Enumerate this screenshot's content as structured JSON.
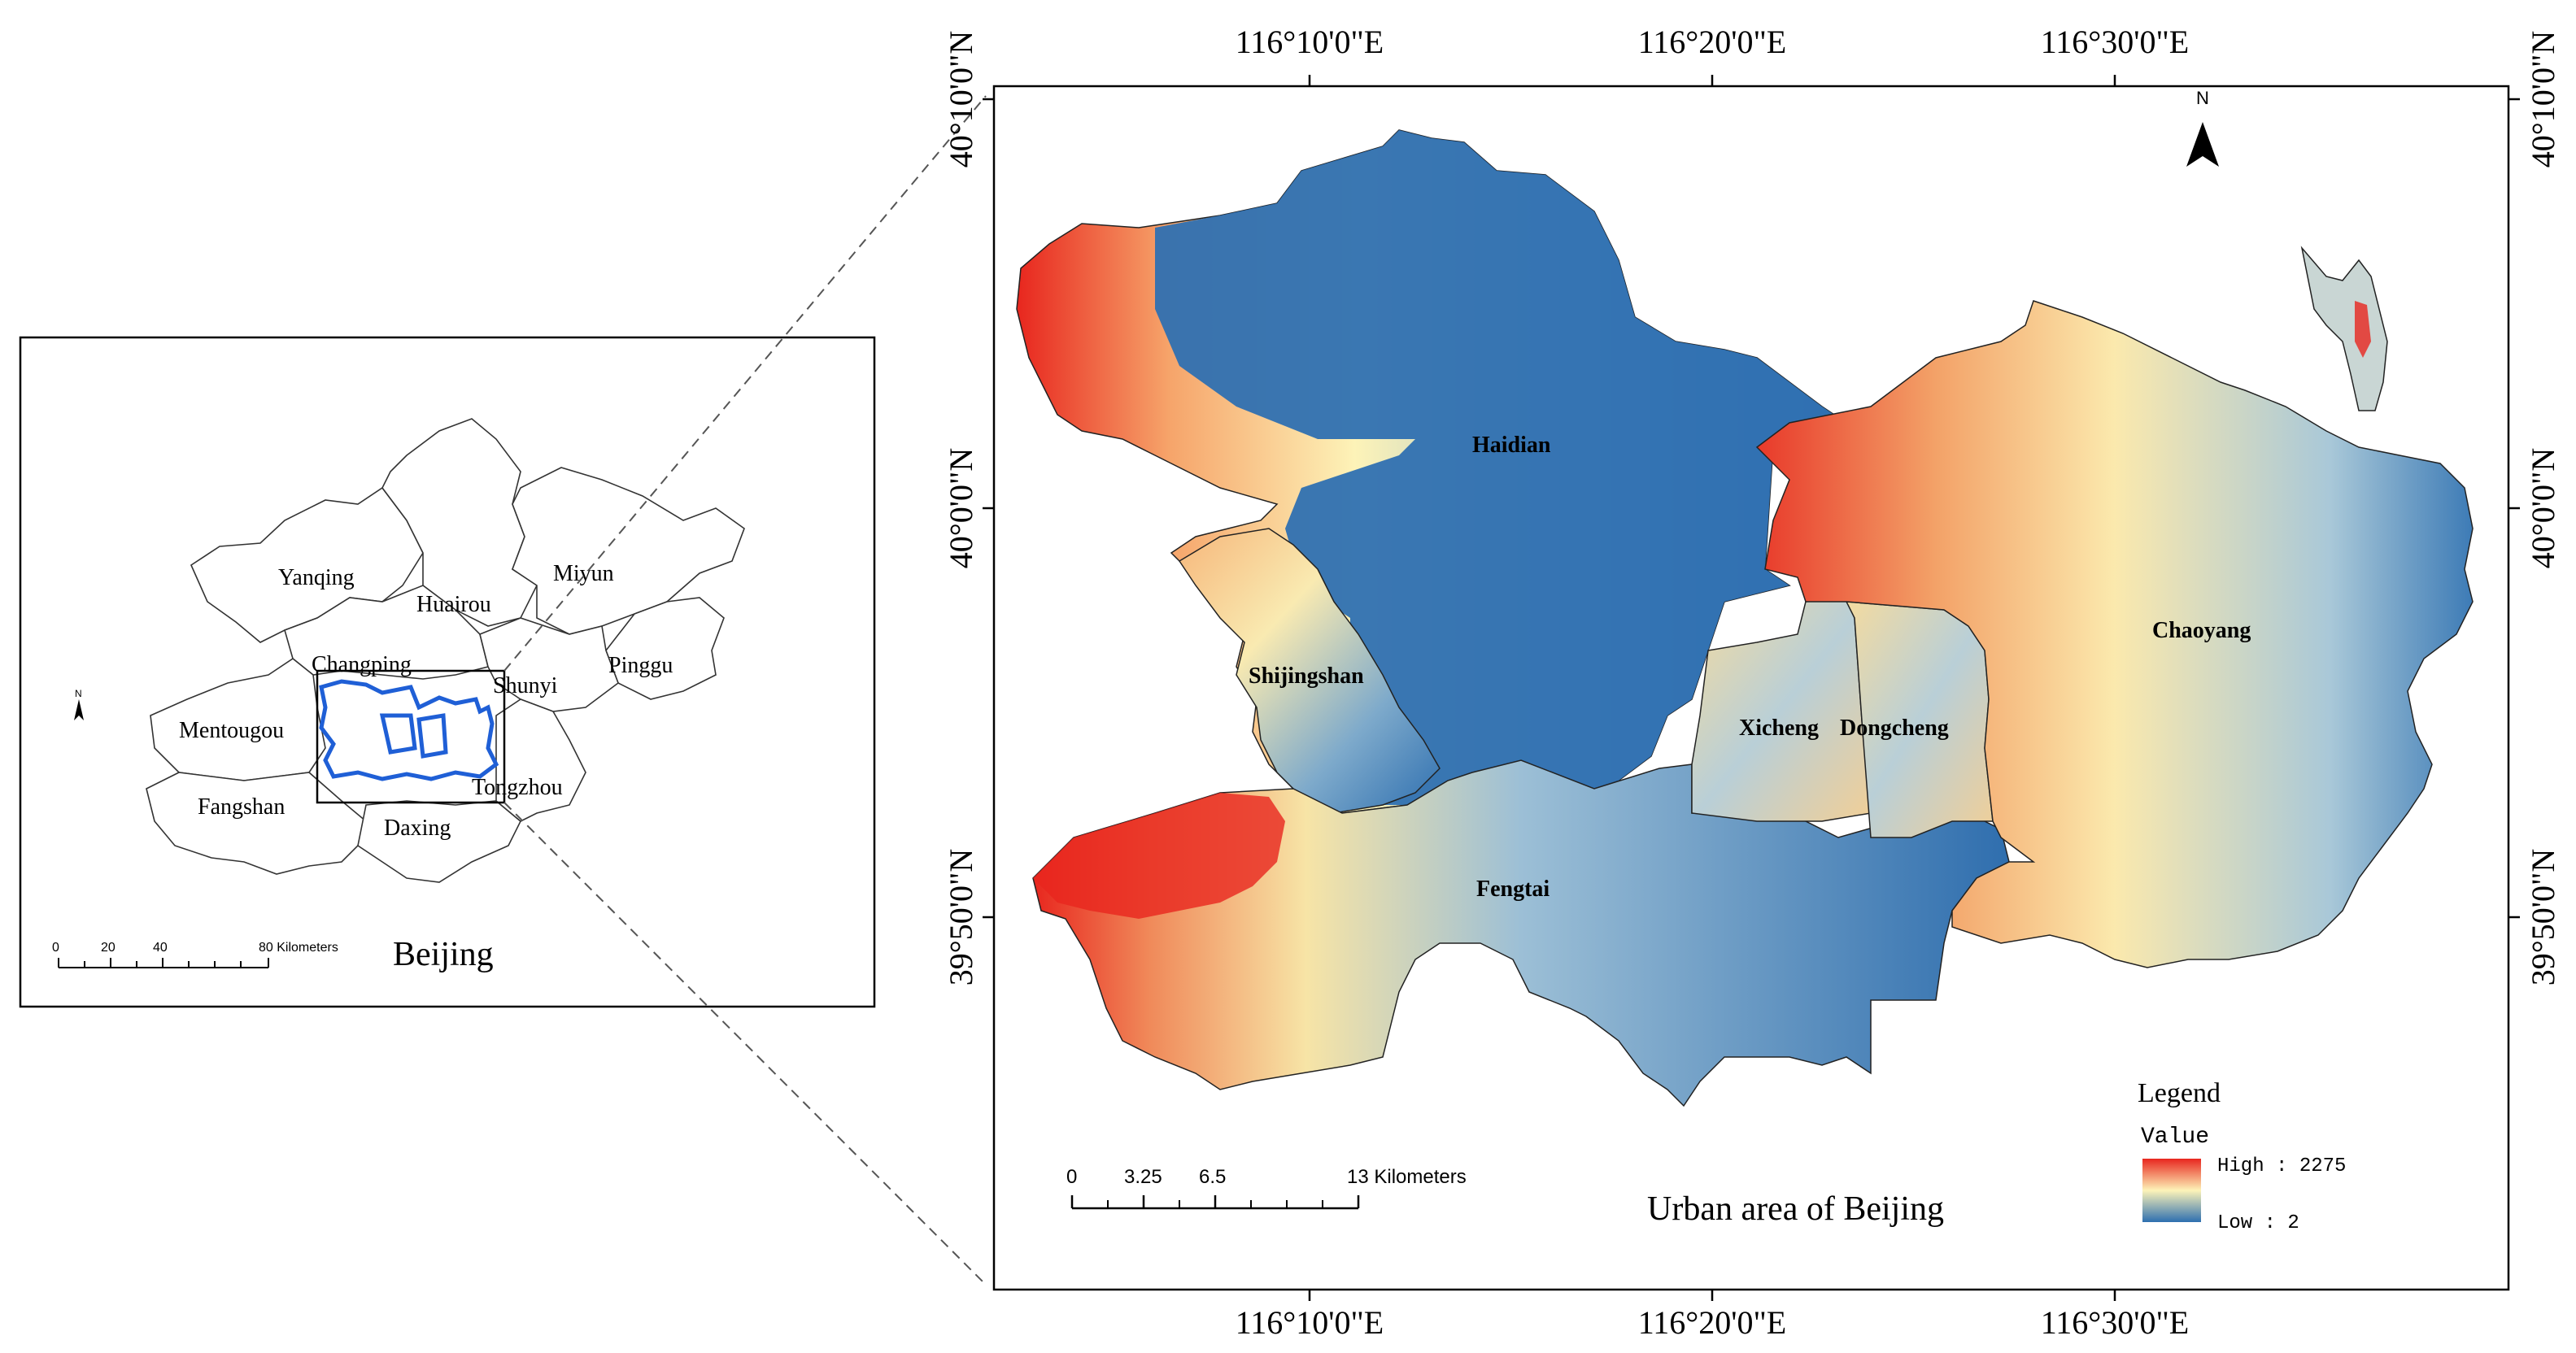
{
  "overview": {
    "title": "Beijing",
    "districts": [
      {
        "name": "Yanqing"
      },
      {
        "name": "Huairou"
      },
      {
        "name": "Miyun"
      },
      {
        "name": "Changping"
      },
      {
        "name": "Shunyi"
      },
      {
        "name": "Pinggu"
      },
      {
        "name": "Mentougou"
      },
      {
        "name": "Tongzhou"
      },
      {
        "name": "Fangshan"
      },
      {
        "name": "Daxing"
      }
    ],
    "north_label": "N",
    "scale": {
      "ticks": [
        "0",
        "20",
        "40"
      ],
      "end_label": "80 Kilometers"
    }
  },
  "main_map": {
    "title": "Urban area of Beijing",
    "north_label": "N",
    "districts": [
      {
        "name": "Haidian"
      },
      {
        "name": "Shijingshan"
      },
      {
        "name": "Chaoyang"
      },
      {
        "name": "Xicheng"
      },
      {
        "name": "Dongcheng"
      },
      {
        "name": "Fengtai"
      }
    ],
    "lon_labels": [
      "116°10'0\"E",
      "116°20'0\"E",
      "116°30'0\"E"
    ],
    "lat_labels": [
      "40°10'0\"N",
      "40°0'0\"N",
      "39°50'0\"N"
    ],
    "scale": {
      "ticks": [
        "0",
        "3.25",
        "6.5"
      ],
      "end_label": "13 Kilometers"
    },
    "legend": {
      "title": "Legend",
      "subtitle": "Value",
      "high_label": "High : 2275",
      "low_label": "Low : 2",
      "colors": {
        "high": "#e8261e",
        "mid": "#fdf3b8",
        "low": "#2e6fb0"
      }
    }
  }
}
